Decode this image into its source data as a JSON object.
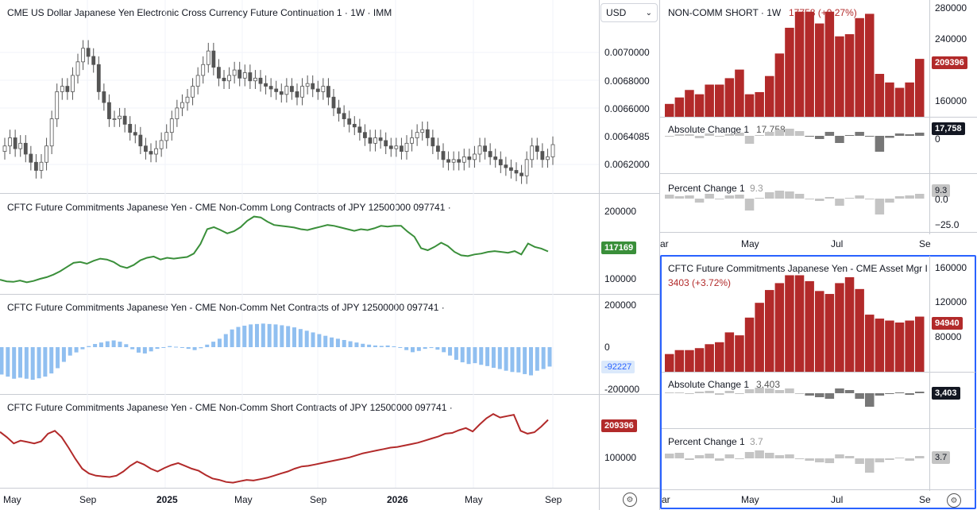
{
  "main": {
    "price_title": "CME US Dollar Japanese Yen Electronic Cross Currency Future Continuation 1 · 1W · IMM",
    "currency_select": "USD",
    "price_ticks": [
      "0.0070000",
      "0.0068000",
      "0.0066000",
      "0.0064085",
      "0.0062000"
    ],
    "long_title": "CFTC Future Commitments Japanese Yen - CME Non-Comm Long Contracts of JPY 12500000 097741 ·",
    "long_ticks": [
      "200000",
      "100000"
    ],
    "long_badge": "117169",
    "net_title": "CFTC Future Commitments Japanese Yen - CME Non-Comm Net Contracts of JPY 12500000 097741 ·",
    "net_ticks": [
      "200000",
      "0",
      "-200000"
    ],
    "net_badge": "-92227",
    "short_title": "CFTC Future Commitments Japanese Yen - CME Non-Comm Short Contracts of JPY 12500000 097741 ·",
    "short_ticks": [
      "100000"
    ],
    "short_badge": "209396",
    "x_labels": [
      "May",
      "Sep",
      "2025",
      "May",
      "Sep",
      "2026",
      "May",
      "Sep"
    ]
  },
  "right_top": {
    "title": "NON-COMM SHORT · 1W",
    "change": "17758 (+9.27%)",
    "ticks": [
      "280000",
      "240000",
      "160000"
    ],
    "badge": "209396",
    "abs_title": "Absolute Change 1",
    "abs_value": "17,758",
    "abs_badge": "17,758",
    "abs_tick": "0",
    "pct_title": "Percent Change 1",
    "pct_value": "9.3",
    "pct_badge": "9.3",
    "pct_ticks": [
      "0.0",
      "−25.0"
    ],
    "x_labels": [
      "ar",
      "May",
      "Jul",
      "Se"
    ]
  },
  "right_bottom": {
    "title": "CFTC Future Commitments Japanese Yen - CME Asset Mgr I",
    "change": "3403 (+3.72%)",
    "ticks": [
      "160000",
      "120000",
      "80000"
    ],
    "badge": "94940",
    "abs_title": "Absolute Change 1",
    "abs_value": "3,403",
    "abs_badge": "3,403",
    "pct_title": "Percent Change 1",
    "pct_value": "3.7",
    "pct_badge": "3.7",
    "x_labels": [
      "ar",
      "May",
      "Jul",
      "Se"
    ]
  },
  "colors": {
    "up": "#555555",
    "long_line": "#3a8f3a",
    "net_bar": "#90bff0",
    "short_line": "#b22a2a",
    "bar_red": "#b22a2a",
    "grey_bar": "#777777",
    "light_grey_bar": "#c4c4c4",
    "accent": "#2962ff"
  },
  "chart_data": [
    {
      "type": "candlestick",
      "title": "CME US Dollar Japanese Yen Electronic Cross Currency Future Continuation 1 · 1W · IMM",
      "ylim": [
        0.0061,
        0.0073
      ],
      "closes": [
        0.0064,
        0.00646,
        0.00638,
        0.00642,
        0.00634,
        0.00628,
        0.00622,
        0.00628,
        0.0064,
        0.0066,
        0.0068,
        0.00684,
        0.0068,
        0.00692,
        0.00702,
        0.00712,
        0.00706,
        0.007,
        0.0068,
        0.00672,
        0.0066,
        0.0066,
        0.00662,
        0.00656,
        0.0065,
        0.00648,
        0.0064,
        0.00636,
        0.00634,
        0.00638,
        0.00644,
        0.0065,
        0.0066,
        0.00668,
        0.00672,
        0.00676,
        0.00684,
        0.00692,
        0.007,
        0.0071,
        0.00698,
        0.0069,
        0.00688,
        0.00692,
        0.00696,
        0.0069,
        0.00694,
        0.00688,
        0.0069,
        0.00686,
        0.00684,
        0.00682,
        0.0068,
        0.00678,
        0.00684,
        0.0068,
        0.00676,
        0.00684,
        0.00686,
        0.00682,
        0.0068,
        0.00684,
        0.00676,
        0.00668,
        0.00664,
        0.0066,
        0.00656,
        0.00654,
        0.0065,
        0.00646,
        0.00642,
        0.00646,
        0.00644,
        0.0064,
        0.00638,
        0.0064,
        0.00636,
        0.00642,
        0.00646,
        0.0065,
        0.00652,
        0.00646,
        0.0064,
        0.00636,
        0.0063,
        0.00628,
        0.0063,
        0.00628,
        0.00632,
        0.0063,
        0.00634,
        0.0064,
        0.00636,
        0.00632,
        0.0063,
        0.00626,
        0.00624,
        0.00622,
        0.0062,
        0.00618,
        0.0063,
        0.0064,
        0.00636,
        0.0063,
        0.00632,
        0.00641
      ]
    },
    {
      "type": "line",
      "series": [
        {
          "name": "Non-Comm Long",
          "values": [
            50000,
            46000,
            45000,
            48000,
            44000,
            47000,
            52000,
            56000,
            62000,
            70000,
            80000,
            90000,
            92000,
            88000,
            95000,
            100000,
            98000,
            92000,
            82000,
            78000,
            85000,
            96000,
            102000,
            105000,
            98000,
            102000,
            100000,
            102000,
            104000,
            112000,
            135000,
            170000,
            175000,
            168000,
            160000,
            165000,
            175000,
            190000,
            200000,
            198000,
            188000,
            180000,
            178000,
            176000,
            174000,
            170000,
            168000,
            172000,
            176000,
            180000,
            178000,
            174000,
            170000,
            166000,
            170000,
            168000,
            172000,
            178000,
            176000,
            178000,
            178000,
            164000,
            152000,
            125000,
            120000,
            128000,
            138000,
            130000,
            116000,
            108000,
            106000,
            110000,
            112000,
            116000,
            118000,
            116000,
            114000,
            118000,
            110000,
            136000,
            128000,
            124000,
            117169
          ]
        }
      ],
      "ylim": [
        20000,
        220000
      ]
    },
    {
      "type": "bar",
      "series": [
        {
          "name": "Non-Comm Net",
          "values": [
            -130000,
            -140000,
            -150000,
            -145000,
            -150000,
            -155000,
            -148000,
            -140000,
            -125000,
            -100000,
            -70000,
            -40000,
            -25000,
            -10000,
            5000,
            15000,
            22000,
            28000,
            32000,
            26000,
            14000,
            -10000,
            -26000,
            -30000,
            -20000,
            -8000,
            0,
            5000,
            2000,
            -2000,
            -8000,
            -14000,
            -5000,
            12000,
            26000,
            40000,
            62000,
            84000,
            96000,
            102000,
            108000,
            110000,
            112000,
            110000,
            108000,
            104000,
            100000,
            94000,
            86000,
            78000,
            70000,
            62000,
            54000,
            46000,
            40000,
            34000,
            28000,
            22000,
            16000,
            12000,
            8000,
            6000,
            8000,
            4000,
            -2000,
            -14000,
            -24000,
            -18000,
            -8000,
            -4000,
            -12000,
            -24000,
            -40000,
            -60000,
            -72000,
            -80000,
            -76000,
            -84000,
            -90000,
            -98000,
            -104000,
            -112000,
            -118000,
            -120000,
            -128000,
            -134000,
            -112000,
            -104000,
            -92227
          ]
        }
      ],
      "ylim": [
        -230000,
        230000
      ]
    },
    {
      "type": "line",
      "series": [
        {
          "name": "Non-Comm Short",
          "values": [
            175000,
            160000,
            142000,
            150000,
            146000,
            142000,
            148000,
            170000,
            178000,
            160000,
            130000,
            98000,
            70000,
            56000,
            50000,
            48000,
            46000,
            50000,
            62000,
            78000,
            90000,
            82000,
            70000,
            62000,
            72000,
            80000,
            86000,
            78000,
            70000,
            64000,
            52000,
            42000,
            38000,
            32000,
            30000,
            34000,
            38000,
            36000,
            40000,
            44000,
            50000,
            56000,
            62000,
            70000,
            76000,
            78000,
            82000,
            86000,
            90000,
            94000,
            98000,
            102000,
            108000,
            114000,
            118000,
            122000,
            126000,
            130000,
            132000,
            136000,
            140000,
            144000,
            150000,
            156000,
            162000,
            170000,
            172000,
            180000,
            186000,
            176000,
            196000,
            214000,
            226000,
            216000,
            220000,
            224000,
            178000,
            170000,
            174000,
            190000,
            209396
          ]
        }
      ],
      "ylim": [
        20000,
        240000
      ]
    }
  ]
}
